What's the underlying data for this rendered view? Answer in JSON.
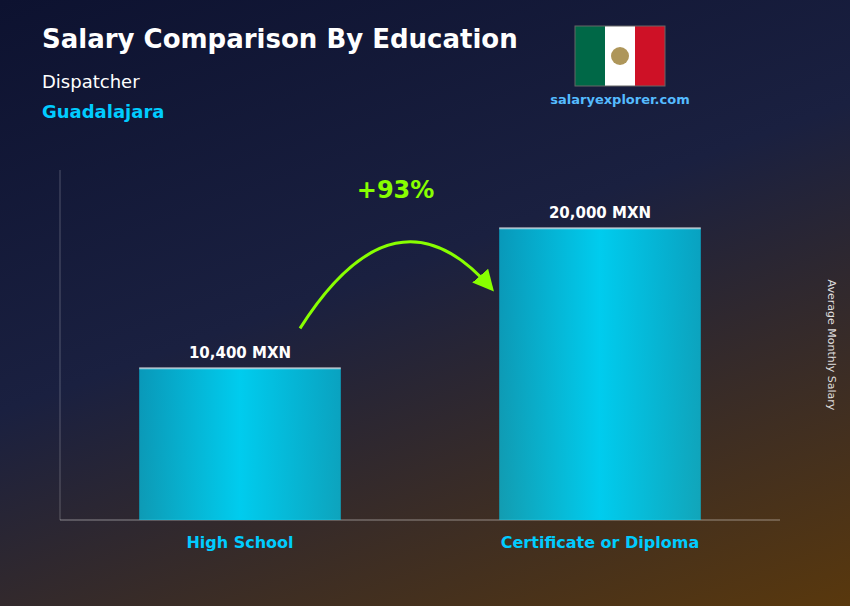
{
  "chart_data": {
    "type": "bar",
    "title": "Salary Comparison By Education",
    "subtitle": "Dispatcher",
    "annotations": [
      "Guadalajara",
      "+93%",
      "salaryexplorer.com"
    ],
    "ylabel": "Average Monthly Salary",
    "categories": [
      "High School",
      "Certificate or Diploma"
    ],
    "values": [
      10400,
      20000
    ],
    "value_labels": [
      "10,400 MXN",
      "20,000 MXN"
    ],
    "color": "#00CCEE",
    "ylim": [
      0,
      24000
    ],
    "tick_labels": "x",
    "data_labels": true
  }
}
